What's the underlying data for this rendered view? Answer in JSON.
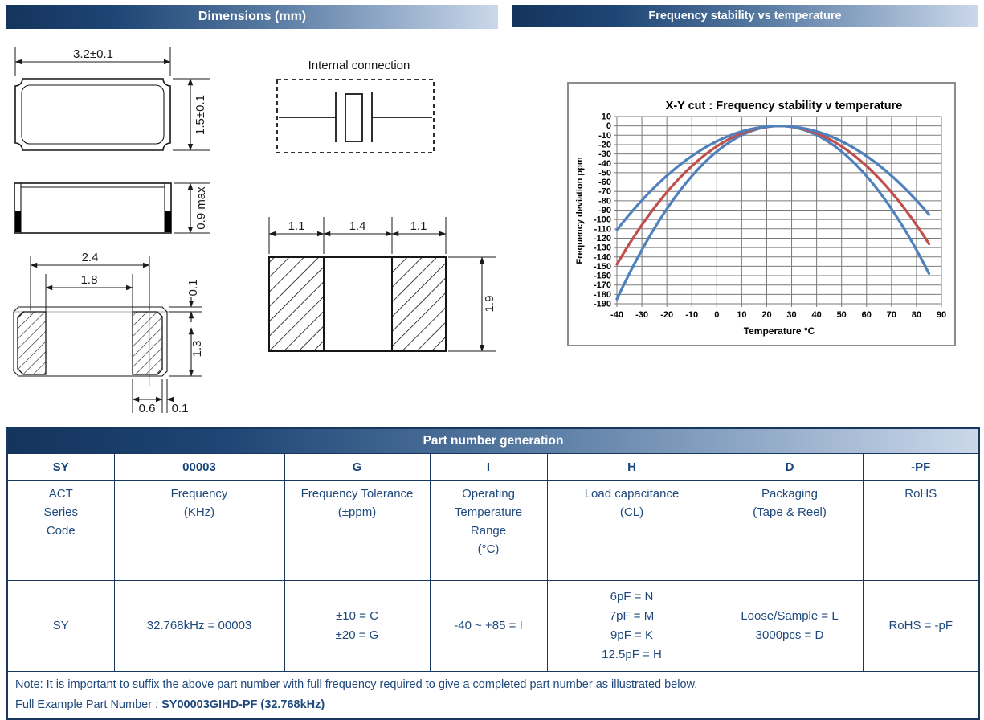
{
  "headers": {
    "dimensions": "Dimensions (mm)",
    "frequency": "Frequency stability vs temperature"
  },
  "drawings": {
    "internal_connection": {
      "title": "Internal connection"
    },
    "top_view": {
      "width": "3.2±0.1",
      "height": "1.5±0.1"
    },
    "side_view": {
      "height": "0.9 max"
    },
    "land_view": {
      "pad_pitch": "2.4",
      "inner_gap": "1.8",
      "top_offset": "0.1",
      "pad_length": "1.3",
      "pad_width": "0.6",
      "edge_gap": "0.1"
    },
    "footprint": {
      "left_pad": "1.1",
      "center_gap": "1.4",
      "right_pad": "1.1",
      "height": "1.9"
    }
  },
  "colors": {
    "header_bar_dark": "#14345C",
    "header_bar_light": "#CBD8EA",
    "table_border": "#17375E",
    "table_text": "#1F497D",
    "chart_border": "#8C8C8C",
    "chart_grid": "#7A7A7A",
    "curve_blue": "#4F81BD",
    "curve_red": "#C0504D"
  },
  "chart_data": {
    "type": "line",
    "title": "X-Y cut :  Frequency stability v temperature",
    "xlabel": "Temperature °C",
    "ylabel": "Frequency deviation ppm",
    "xlim": [
      -40,
      90
    ],
    "ylim": [
      -190,
      10
    ],
    "x_ticks": [
      -40,
      -30,
      -20,
      -10,
      0,
      10,
      20,
      30,
      40,
      50,
      60,
      70,
      80,
      90
    ],
    "y_ticks": [
      10,
      0,
      -10,
      -20,
      -30,
      -40,
      -50,
      -60,
      -70,
      -80,
      -90,
      -100,
      -110,
      -120,
      -130,
      -140,
      -150,
      -160,
      -170,
      -180,
      -190
    ],
    "grid": true,
    "legend": "none",
    "series": [
      {
        "name": "steep-blue-envelope",
        "color": "#4F81BD",
        "turnover_c": 25,
        "k_ppm_per_c2": 0.0438,
        "t_range": [
          -40,
          85
        ],
        "x": [
          -40,
          -35,
          -30,
          -25,
          -20,
          -15,
          -10,
          -5,
          0,
          5,
          10,
          15,
          20,
          25,
          30,
          35,
          40,
          45,
          50,
          55,
          60,
          65,
          70,
          75,
          80,
          85
        ],
        "y": [
          -185.1,
          -157.7,
          -132.5,
          -109.5,
          -88.7,
          -70.1,
          -53.7,
          -39.4,
          -27.4,
          -17.5,
          -9.9,
          -4.4,
          -1.1,
          0,
          -1.1,
          -4.4,
          -9.9,
          -17.5,
          -27.4,
          -39.4,
          -53.7,
          -70.1,
          -88.7,
          -109.5,
          -132.5,
          -157.7
        ]
      },
      {
        "name": "typical-red",
        "color": "#C0504D",
        "turnover_c": 25,
        "k_ppm_per_c2": 0.035,
        "t_range": [
          -40,
          85
        ],
        "x": [
          -40,
          -35,
          -30,
          -25,
          -20,
          -15,
          -10,
          -5,
          0,
          5,
          10,
          15,
          20,
          25,
          30,
          35,
          40,
          45,
          50,
          55,
          60,
          65,
          70,
          75,
          80,
          85
        ],
        "y": [
          -147.9,
          -126.0,
          -105.9,
          -87.5,
          -70.9,
          -56.0,
          -42.9,
          -31.5,
          -21.9,
          -14.0,
          -7.9,
          -3.5,
          -0.9,
          0,
          -0.9,
          -3.5,
          -7.9,
          -14.0,
          -21.9,
          -31.5,
          -42.9,
          -56.0,
          -70.9,
          -87.5,
          -105.9,
          -126.0
        ]
      },
      {
        "name": "shallow-blue-envelope",
        "color": "#4F81BD",
        "turnover_c": 25,
        "k_ppm_per_c2": 0.0263,
        "t_range": [
          -40,
          85
        ],
        "x": [
          -40,
          -35,
          -30,
          -25,
          -20,
          -15,
          -10,
          -5,
          0,
          5,
          10,
          15,
          20,
          25,
          30,
          35,
          40,
          45,
          50,
          55,
          60,
          65,
          70,
          75,
          80,
          85
        ],
        "y": [
          -111.1,
          -94.7,
          -79.6,
          -65.8,
          -53.3,
          -42.1,
          -32.2,
          -23.7,
          -16.4,
          -10.5,
          -5.9,
          -2.6,
          -0.7,
          0,
          -0.7,
          -2.6,
          -5.9,
          -10.5,
          -16.4,
          -23.7,
          -32.2,
          -42.1,
          -53.3,
          -65.8,
          -79.6,
          -94.7
        ]
      }
    ]
  },
  "table": {
    "title": "Part number generation",
    "columns": [
      {
        "code": "SY",
        "description": [
          "ACT",
          "Series",
          "Code"
        ],
        "values": [
          "SY"
        ]
      },
      {
        "code": "00003",
        "description": [
          "Frequency",
          "(KHz)"
        ],
        "values": [
          "32.768kHz = 00003"
        ]
      },
      {
        "code": "G",
        "description": [
          "Frequency Tolerance",
          "(±ppm)"
        ],
        "values": [
          "±10 = C",
          "±20 = G"
        ]
      },
      {
        "code": "I",
        "description": [
          "Operating",
          "Temperature",
          "Range",
          "(°C)"
        ],
        "values": [
          "-40 ~ +85 = I"
        ]
      },
      {
        "code": "H",
        "description": [
          "Load capacitance",
          "(CL)"
        ],
        "values": [
          "6pF = N",
          "7pF = M",
          "9pF = K",
          "12.5pF = H"
        ]
      },
      {
        "code": "D",
        "description": [
          "Packaging",
          "(Tape & Reel)"
        ],
        "values": [
          "Loose/Sample  = L",
          "3000pcs = D"
        ]
      },
      {
        "code": "-PF",
        "description": [
          "RoHS"
        ],
        "values": [
          "RoHS = -pF"
        ]
      }
    ],
    "note_line1": "Note: It is important to suffix the above part number with full frequency required to give a completed part number as illustrated below.",
    "note_line2_prefix": "Full Example Part Number : ",
    "note_line2_bold": "SY00003GIHD-PF (32.768kHz)"
  }
}
